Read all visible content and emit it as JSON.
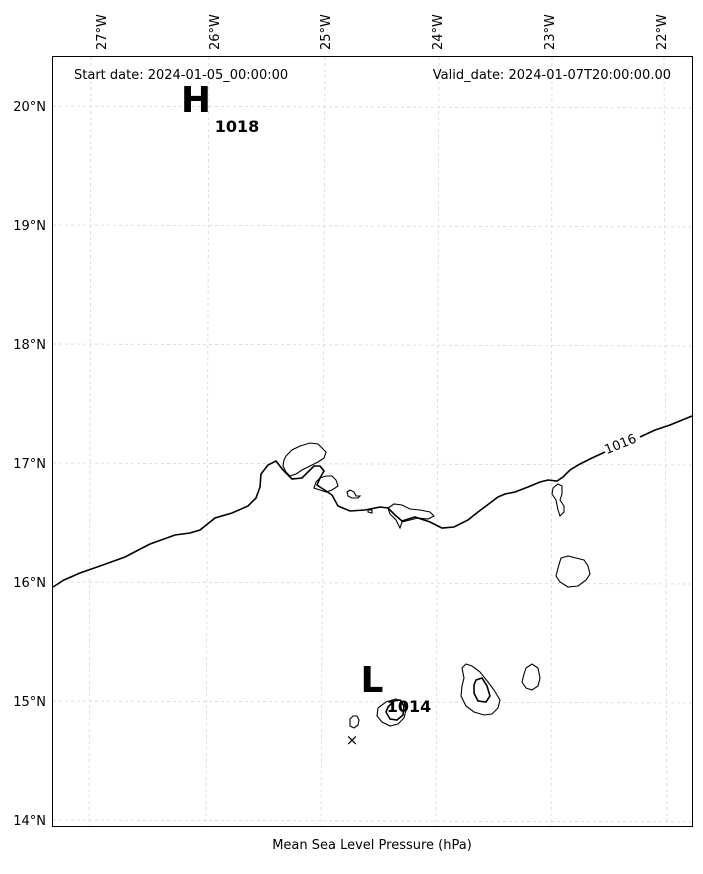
{
  "header": {
    "start_date": "Start date: 2024-01-05_00:00:00",
    "valid_date": "Valid_date: 2024-01-07T20:00:00.00"
  },
  "caption": "Mean Sea Level Pressure (hPa)",
  "axes": {
    "lon_labels": [
      "27°W",
      "26°W",
      "25°W",
      "24°W",
      "23°W",
      "22°W"
    ],
    "lat_labels": [
      "20°N",
      "19°N",
      "18°N",
      "17°N",
      "16°N",
      "15°N",
      "14°N"
    ]
  },
  "pressure_centers": [
    {
      "letter": "H",
      "value": "1018"
    },
    {
      "letter": "L",
      "value": "1014"
    }
  ],
  "isobar_labels": [
    "1016"
  ],
  "marker": {
    "symbol": "×"
  }
}
